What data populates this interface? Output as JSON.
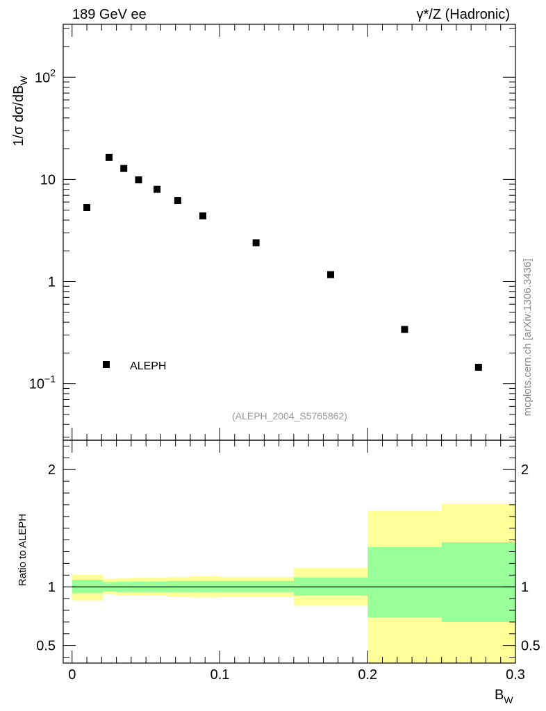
{
  "header": {
    "left_title": "189 GeV ee",
    "right_title": "γ*/Z (Hadronic)"
  },
  "watermark": "mcplots.cern.ch [arXiv:1306.3436]",
  "analysis_id": "(ALEPH_2004_S5765862)",
  "chart_data": [
    {
      "type": "scatter",
      "title": "",
      "ylabel": "1/σ  dσ/dB",
      "ylabel_sub": "W",
      "xlabel": "B",
      "xlabel_sub": "W",
      "yscale": "log",
      "xlim": [
        -0.006,
        0.3
      ],
      "ylim": [
        0.028,
        330
      ],
      "y_ticks": [
        {
          "v": 0.1,
          "label": "10",
          "sup": "−1"
        },
        {
          "v": 1,
          "label": "1",
          "sup": ""
        },
        {
          "v": 10,
          "label": "10",
          "sup": ""
        },
        {
          "v": 100,
          "label": "10",
          "sup": "2"
        }
      ],
      "legend": {
        "label": "ALEPH",
        "position": "bottom-left"
      },
      "series": [
        {
          "name": "ALEPH",
          "x": [
            0.01,
            0.025,
            0.035,
            0.045,
            0.0575,
            0.0715,
            0.0885,
            0.1245,
            0.175,
            0.225,
            0.275
          ],
          "y": [
            5.3,
            16.4,
            12.8,
            9.9,
            8.0,
            6.2,
            4.4,
            2.4,
            1.17,
            0.34,
            0.145
          ]
        }
      ]
    },
    {
      "type": "area",
      "ylabel": "Ratio to ALEPH",
      "xlabel": "B",
      "xlabel_sub": "W",
      "xlim": [
        -0.006,
        0.3
      ],
      "ylim": [
        0.35,
        2.25
      ],
      "y_ticks": [
        0.5,
        1,
        2
      ],
      "y_tick_labels": [
        "0.5",
        "1",
        "2"
      ],
      "x_ticks": [
        0,
        0.1,
        0.2,
        0.3
      ],
      "x_tick_labels": [
        "0",
        "0.1",
        "0.2",
        "0.3"
      ],
      "reference_line": 1,
      "bins": [
        {
          "lo": 0.0,
          "hi": 0.021,
          "yellow": [
            0.885,
            1.105
          ],
          "green": [
            0.945,
            1.06
          ]
        },
        {
          "lo": 0.021,
          "hi": 0.03,
          "yellow": [
            0.935,
            1.07
          ],
          "green": [
            0.96,
            1.04
          ]
        },
        {
          "lo": 0.03,
          "hi": 0.04,
          "yellow": [
            0.93,
            1.075
          ],
          "green": [
            0.955,
            1.045
          ]
        },
        {
          "lo": 0.04,
          "hi": 0.05,
          "yellow": [
            0.925,
            1.08
          ],
          "green": [
            0.955,
            1.045
          ]
        },
        {
          "lo": 0.05,
          "hi": 0.065,
          "yellow": [
            0.925,
            1.08
          ],
          "green": [
            0.955,
            1.045
          ]
        },
        {
          "lo": 0.065,
          "hi": 0.08,
          "yellow": [
            0.915,
            1.085
          ],
          "green": [
            0.955,
            1.05
          ]
        },
        {
          "lo": 0.08,
          "hi": 0.1,
          "yellow": [
            0.91,
            1.09
          ],
          "green": [
            0.955,
            1.05
          ]
        },
        {
          "lo": 0.1,
          "hi": 0.15,
          "yellow": [
            0.915,
            1.085
          ],
          "green": [
            0.955,
            1.05
          ]
        },
        {
          "lo": 0.15,
          "hi": 0.2,
          "yellow": [
            0.84,
            1.16
          ],
          "green": [
            0.925,
            1.08
          ]
        },
        {
          "lo": 0.2,
          "hi": 0.25,
          "yellow": [
            0.3,
            1.65
          ],
          "green": [
            0.74,
            1.34
          ]
        },
        {
          "lo": 0.25,
          "hi": 0.3,
          "yellow": [
            0.3,
            1.71
          ],
          "green": [
            0.7,
            1.38
          ]
        }
      ]
    }
  ],
  "colors": {
    "band_yellow": "#ffff99",
    "band_green": "#99ff99",
    "marker": "#000000",
    "analysis_label": "#999999",
    "watermark": "#888888"
  }
}
